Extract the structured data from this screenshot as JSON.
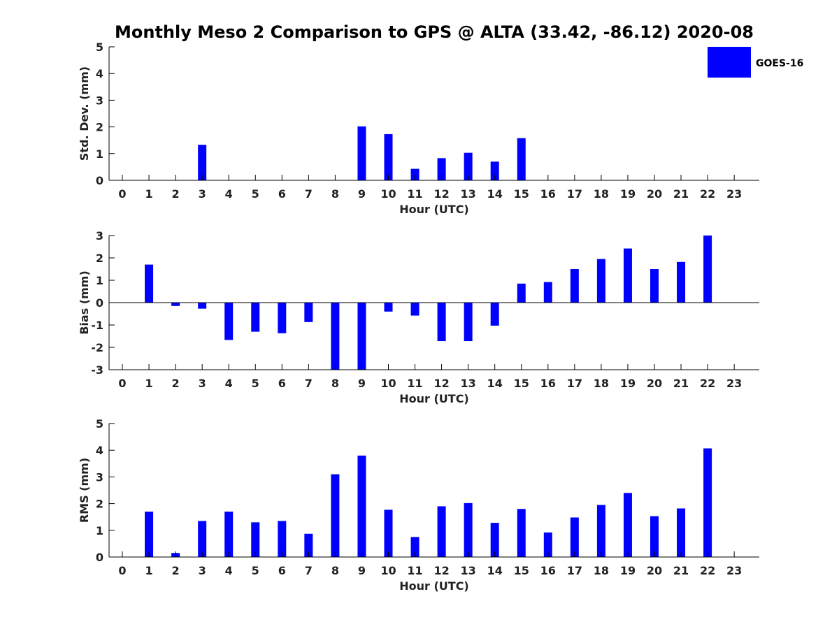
{
  "figure_title": "Monthly Meso 2 Comparison to GPS @ ALTA (33.42, -86.12) 2020-08",
  "legend": {
    "label": "GOES-16",
    "color": "#0000ff"
  },
  "chart_data": [
    {
      "type": "bar",
      "title": "Monthly Meso 2 Comparison to GPS @ ALTA (33.42, -86.12) 2020-08",
      "xlabel": "Hour (UTC)",
      "ylabel": "Std. Dev. (mm)",
      "ylim": [
        0,
        5
      ],
      "yticks": [
        "0",
        "1",
        "2",
        "3",
        "4",
        "5"
      ],
      "categories": [
        "0",
        "1",
        "2",
        "3",
        "4",
        "5",
        "6",
        "7",
        "8",
        "9",
        "10",
        "11",
        "12",
        "13",
        "14",
        "15",
        "16",
        "17",
        "18",
        "19",
        "20",
        "21",
        "22",
        "23"
      ],
      "series": [
        {
          "name": "GOES-16",
          "color": "#0000ff",
          "values": [
            0,
            0,
            0,
            1.33,
            0,
            0,
            0,
            0,
            0,
            2.02,
            1.73,
            0.43,
            0.83,
            1.03,
            0.7,
            1.58,
            0,
            0,
            0,
            0,
            0,
            0,
            0,
            0
          ]
        }
      ]
    },
    {
      "type": "bar",
      "title": "",
      "xlabel": "Hour (UTC)",
      "ylabel": "Bias (mm)",
      "ylim": [
        -3,
        3
      ],
      "yticks": [
        "-3",
        "-2",
        "-1",
        "0",
        "1",
        "2",
        "3"
      ],
      "zero_line": true,
      "categories": [
        "0",
        "1",
        "2",
        "3",
        "4",
        "5",
        "6",
        "7",
        "8",
        "9",
        "10",
        "11",
        "12",
        "13",
        "14",
        "15",
        "16",
        "17",
        "18",
        "19",
        "20",
        "21",
        "22",
        "23"
      ],
      "series": [
        {
          "name": "GOES-16",
          "color": "#0000ff",
          "values": [
            0,
            1.7,
            -0.15,
            -0.27,
            -1.67,
            -1.3,
            -1.37,
            -0.87,
            -3.0,
            -3.0,
            -0.4,
            -0.58,
            -1.72,
            -1.72,
            -1.03,
            0.85,
            0.92,
            1.5,
            1.95,
            2.42,
            1.5,
            1.82,
            3.0,
            0
          ]
        }
      ]
    },
    {
      "type": "bar",
      "title": "",
      "xlabel": "Hour (UTC)",
      "ylabel": "RMS (mm)",
      "ylim": [
        0,
        5
      ],
      "yticks": [
        "0",
        "1",
        "2",
        "3",
        "4",
        "5"
      ],
      "categories": [
        "0",
        "1",
        "2",
        "3",
        "4",
        "5",
        "6",
        "7",
        "8",
        "9",
        "10",
        "11",
        "12",
        "13",
        "14",
        "15",
        "16",
        "17",
        "18",
        "19",
        "20",
        "21",
        "22",
        "23"
      ],
      "series": [
        {
          "name": "GOES-16",
          "color": "#0000ff",
          "values": [
            0,
            1.7,
            0.15,
            1.35,
            1.7,
            1.3,
            1.35,
            0.87,
            3.1,
            3.8,
            1.77,
            0.75,
            1.9,
            2.02,
            1.28,
            1.8,
            0.92,
            1.48,
            1.95,
            2.4,
            1.53,
            1.82,
            4.07,
            0
          ]
        }
      ]
    }
  ]
}
